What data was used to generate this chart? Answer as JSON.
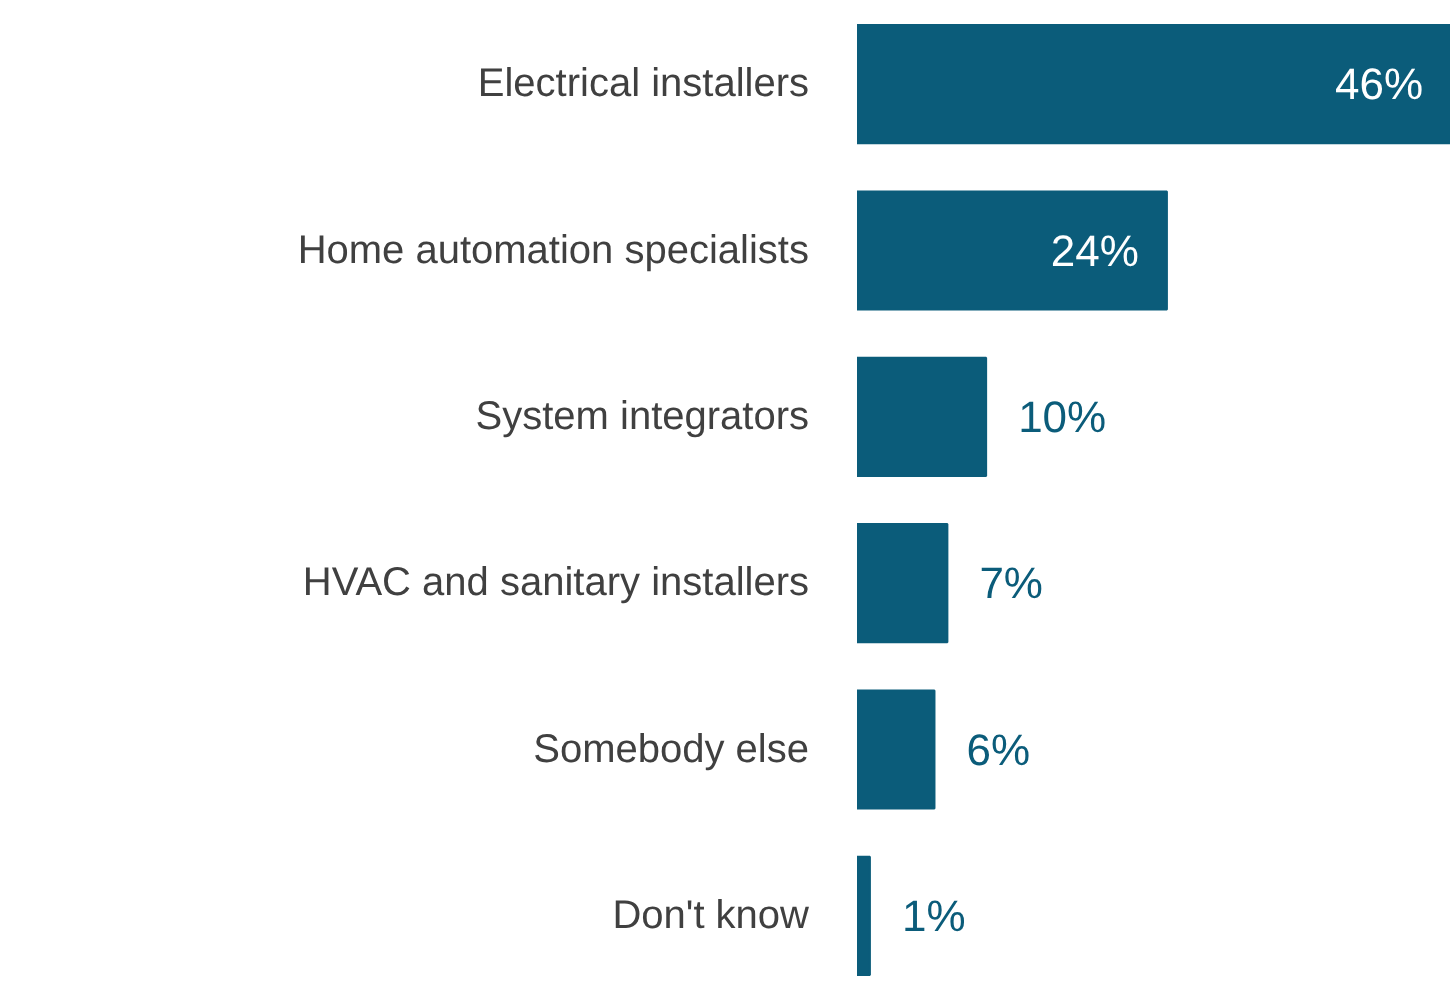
{
  "chart_data": {
    "type": "bar",
    "orientation": "horizontal",
    "categories": [
      "Electrical installers",
      "Home automation specialists",
      "System integrators",
      "HVAC and sanitary installers",
      "Somebody else",
      "Don't know"
    ],
    "values": [
      46,
      24,
      10,
      7,
      6,
      1
    ],
    "value_labels": [
      "46%",
      "24%",
      "10%",
      "7%",
      "6%",
      "1%"
    ],
    "color": "#0b5c7a"
  }
}
